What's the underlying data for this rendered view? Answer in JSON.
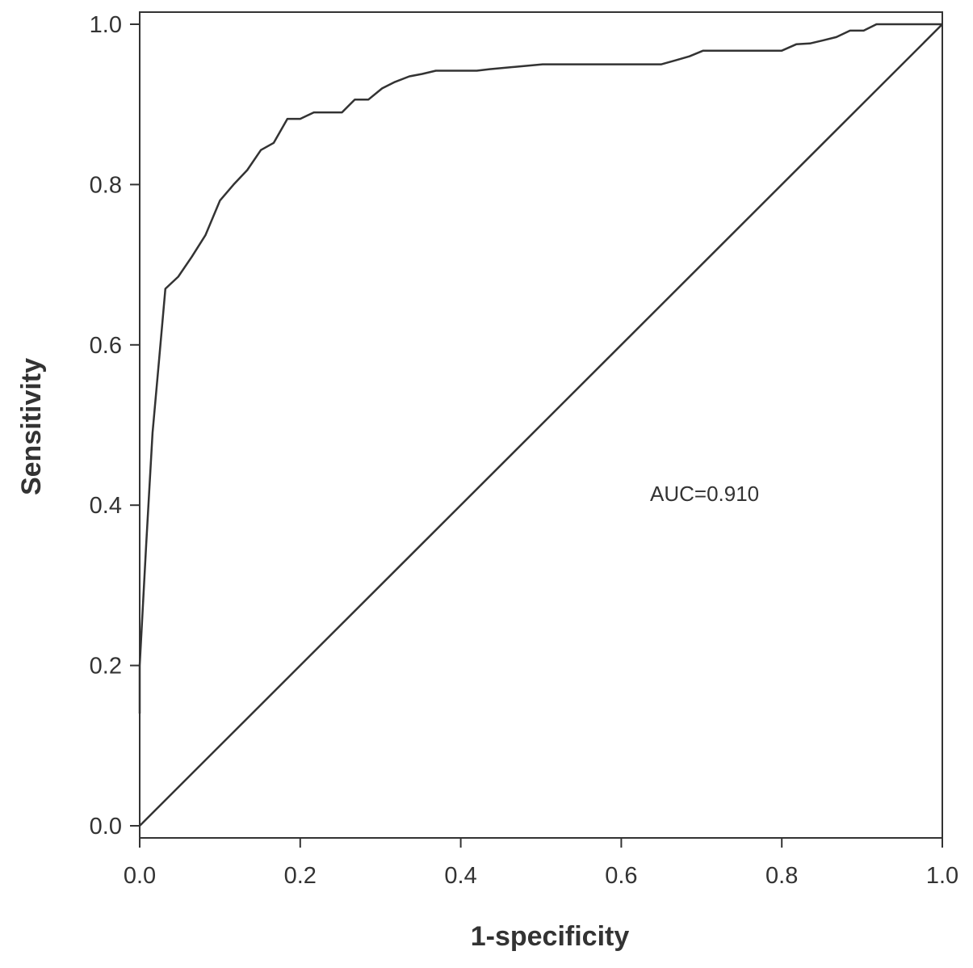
{
  "chart_data": {
    "type": "line",
    "xlabel": "1-specificity",
    "ylabel": "Sensitivity",
    "xlim": [
      0,
      1
    ],
    "ylim": [
      0,
      1
    ],
    "x_ticks": [
      "0.0",
      "0.2",
      "0.4",
      "0.6",
      "0.8",
      "1.0"
    ],
    "y_ticks": [
      "0.0",
      "0.2",
      "0.4",
      "0.6",
      "0.8",
      "1.0"
    ],
    "annotation": "AUC=0.910",
    "grid": false,
    "series": [
      {
        "x": [
          0.0,
          0.0,
          0.008,
          0.016,
          0.024,
          0.032,
          0.048,
          0.065,
          0.082,
          0.1,
          0.117,
          0.134,
          0.151,
          0.167,
          0.184,
          0.2,
          0.217,
          0.235,
          0.252,
          0.268,
          0.285,
          0.302,
          0.318,
          0.336,
          0.352,
          0.369,
          0.402,
          0.42,
          0.436,
          0.469,
          0.502,
          0.602,
          0.65,
          0.668,
          0.685,
          0.702,
          0.752,
          0.8,
          0.818,
          0.835,
          0.852,
          0.868,
          0.885,
          0.902,
          0.918,
          0.935,
          0.952,
          0.968,
          0.985,
          1.0
        ],
        "y": [
          0.14,
          0.2,
          0.35,
          0.49,
          0.58,
          0.67,
          0.685,
          0.71,
          0.737,
          0.78,
          0.8,
          0.818,
          0.843,
          0.852,
          0.882,
          0.882,
          0.89,
          0.89,
          0.89,
          0.906,
          0.906,
          0.92,
          0.928,
          0.935,
          0.938,
          0.942,
          0.942,
          0.942,
          0.944,
          0.947,
          0.95,
          0.95,
          0.95,
          0.955,
          0.96,
          0.967,
          0.967,
          0.967,
          0.975,
          0.976,
          0.98,
          0.984,
          0.992,
          0.992,
          1.0,
          1.0,
          1.0,
          1.0,
          1.0,
          1.0
        ]
      },
      {
        "x": [
          0.0,
          1.0
        ],
        "y": [
          0.0,
          1.0
        ]
      }
    ]
  }
}
